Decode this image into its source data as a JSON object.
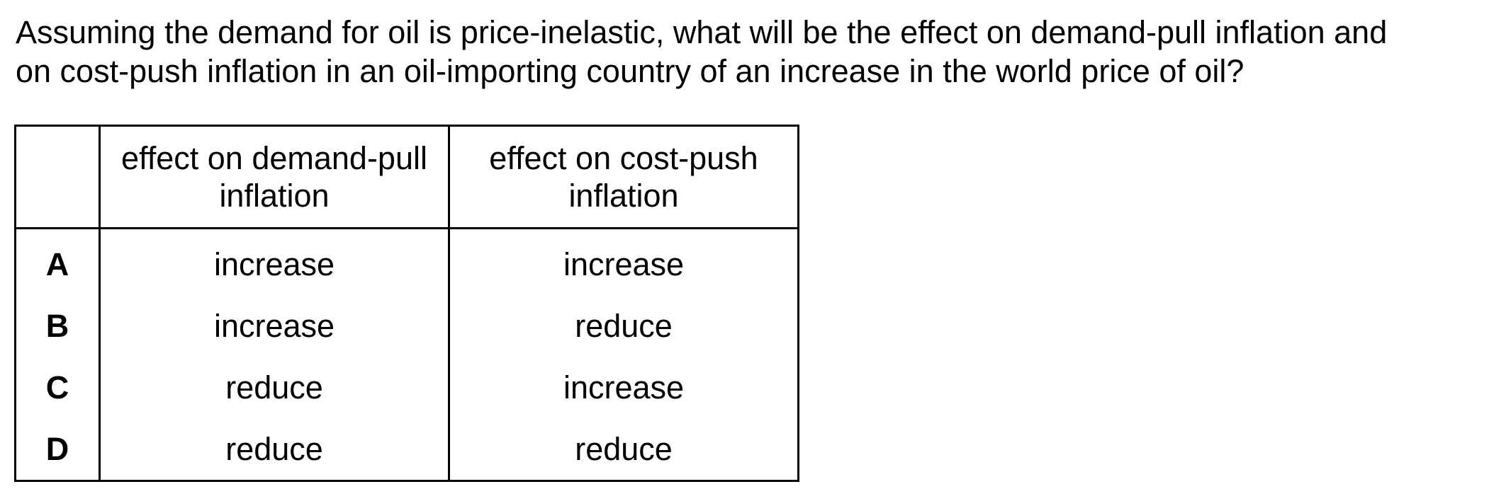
{
  "question": {
    "line1": "Assuming the demand for oil is price-inelastic, what will be the effect on demand-pull inflation and",
    "line2": "on cost-push inflation in an oil-importing country of an increase in the world price of oil?"
  },
  "table": {
    "headers": {
      "letter": "",
      "demand_pull_line1": "effect on demand-pull",
      "demand_pull_line2": "inflation",
      "cost_push_line1": "effect on cost-push",
      "cost_push_line2": "inflation"
    },
    "rows": [
      {
        "letter": "A",
        "demand_pull": "increase",
        "cost_push": "increase"
      },
      {
        "letter": "B",
        "demand_pull": "increase",
        "cost_push": "reduce"
      },
      {
        "letter": "C",
        "demand_pull": "reduce",
        "cost_push": "increase"
      },
      {
        "letter": "D",
        "demand_pull": "reduce",
        "cost_push": "reduce"
      }
    ]
  }
}
